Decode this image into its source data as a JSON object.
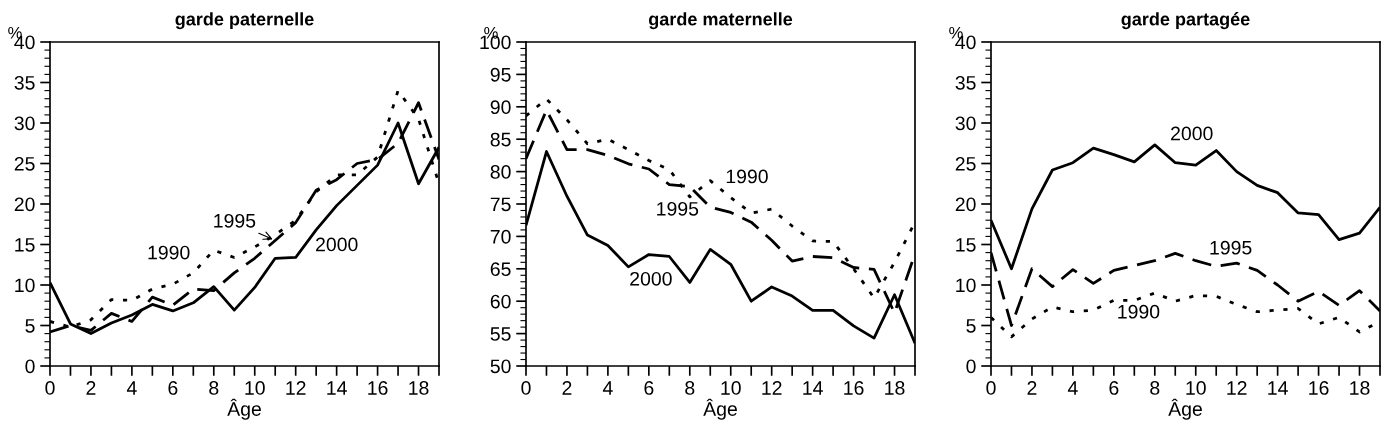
{
  "chart_data": [
    {
      "type": "line",
      "title": "garde paternelle",
      "xlabel": "Âge",
      "ylabel": "%",
      "x": [
        0,
        1,
        2,
        3,
        4,
        5,
        6,
        7,
        8,
        9,
        10,
        11,
        12,
        13,
        14,
        15,
        16,
        17,
        18,
        19
      ],
      "xlim": [
        0,
        19
      ],
      "ylim": [
        0,
        40
      ],
      "xticks": [
        0,
        {
          "value": 1,
          "label": null
        },
        2,
        {
          "value": 3,
          "label": null
        },
        4,
        {
          "value": 5,
          "label": null
        },
        6,
        {
          "value": 7,
          "label": null
        },
        8,
        {
          "value": 9,
          "label": null
        },
        10,
        {
          "value": 11,
          "label": null
        },
        12,
        {
          "value": 13,
          "label": null
        },
        14,
        {
          "value": 15,
          "label": null
        },
        16,
        {
          "value": 17,
          "label": null
        },
        18,
        {
          "value": 19,
          "label": null
        }
      ],
      "yticks": [
        0,
        5,
        10,
        15,
        20,
        25,
        30,
        35,
        40
      ],
      "grid": false,
      "series": [
        {
          "name": "1990",
          "color": "#000000",
          "line_style": "dotted",
          "values": [
            5.5,
            4.8,
            5.7,
            8.2,
            8.1,
            9.5,
            10.1,
            11.5,
            14.3,
            13.4,
            14.7,
            16.2,
            18.0,
            21.5,
            23.6,
            23.6,
            25.8,
            34.0,
            30.5,
            22.5
          ]
        },
        {
          "name": "1995",
          "color": "#000000",
          "line_style": "dashed",
          "values": [
            4.2,
            5.0,
            4.4,
            6.5,
            5.5,
            8.5,
            7.5,
            9.5,
            9.3,
            11.5,
            13.3,
            15.5,
            17.7,
            21.7,
            23.0,
            25.0,
            25.5,
            27.5,
            32.5,
            25.5
          ]
        },
        {
          "name": "2000",
          "color": "#000000",
          "line_style": "solid",
          "values": [
            10.3,
            5.2,
            4.0,
            5.3,
            6.3,
            7.6,
            6.8,
            7.8,
            9.8,
            6.9,
            9.7,
            13.3,
            13.4,
            16.8,
            19.8,
            22.3,
            24.8,
            30.0,
            22.5,
            27.0
          ]
        }
      ]
    },
    {
      "type": "line",
      "title": "garde maternelle",
      "xlabel": "Âge",
      "ylabel": "%",
      "x": [
        0,
        1,
        2,
        3,
        4,
        5,
        6,
        7,
        8,
        9,
        10,
        11,
        12,
        13,
        14,
        15,
        16,
        17,
        18,
        19
      ],
      "xlim": [
        0,
        19
      ],
      "ylim": [
        50,
        100
      ],
      "xticks": [
        0,
        {
          "value": 1,
          "label": null
        },
        2,
        {
          "value": 3,
          "label": null
        },
        4,
        {
          "value": 5,
          "label": null
        },
        6,
        {
          "value": 7,
          "label": null
        },
        8,
        {
          "value": 9,
          "label": null
        },
        10,
        {
          "value": 11,
          "label": null
        },
        12,
        {
          "value": 13,
          "label": null
        },
        14,
        {
          "value": 15,
          "label": null
        },
        16,
        {
          "value": 17,
          "label": null
        },
        18,
        {
          "value": 19,
          "label": null
        }
      ],
      "yticks": [
        50,
        55,
        60,
        65,
        70,
        75,
        80,
        85,
        90,
        95,
        100
      ],
      "grid": false,
      "legend": false,
      "series": [
        {
          "name": "1990",
          "color": "#000000",
          "line_style": "dotted",
          "values": [
            88.6,
            91.2,
            88.0,
            84.3,
            85.0,
            83.4,
            81.7,
            80.3,
            76.1,
            78.6,
            76.0,
            73.6,
            74.2,
            71.6,
            69.3,
            69.2,
            65.0,
            60.5,
            66.0,
            72.2
          ]
        },
        {
          "name": "1995",
          "color": "#000000",
          "line_style": "dashed",
          "values": [
            82.0,
            89.5,
            83.4,
            83.4,
            82.5,
            81.2,
            80.4,
            78.0,
            77.7,
            74.5,
            73.7,
            72.2,
            69.4,
            66.2,
            66.9,
            66.7,
            65.2,
            64.9,
            58.2,
            67.3
          ]
        },
        {
          "name": "2000",
          "color": "#000000",
          "line_style": "solid",
          "values": [
            71.7,
            83.1,
            76.2,
            70.2,
            68.6,
            65.3,
            67.2,
            66.9,
            62.9,
            68.0,
            65.7,
            60.0,
            62.2,
            60.8,
            58.6,
            58.6,
            56.2,
            54.3,
            61.0,
            53.5
          ]
        }
      ]
    },
    {
      "type": "line",
      "title": "garde partagée",
      "xlabel": "Âge",
      "ylabel": "%",
      "x": [
        0,
        1,
        2,
        3,
        4,
        5,
        6,
        7,
        8,
        9,
        10,
        11,
        12,
        13,
        14,
        15,
        16,
        17,
        18,
        19
      ],
      "xlim": [
        0,
        19
      ],
      "ylim": [
        0,
        40
      ],
      "xticks": [
        0,
        {
          "value": 1,
          "label": null
        },
        2,
        {
          "value": 3,
          "label": null
        },
        4,
        {
          "value": 5,
          "label": null
        },
        6,
        {
          "value": 7,
          "label": null
        },
        8,
        {
          "value": 9,
          "label": null
        },
        10,
        {
          "value": 11,
          "label": null
        },
        12,
        {
          "value": 13,
          "label": null
        },
        14,
        {
          "value": 15,
          "label": null
        },
        16,
        {
          "value": 17,
          "label": null
        },
        18,
        {
          "value": 19,
          "label": null
        }
      ],
      "yticks": [
        0,
        5,
        10,
        15,
        20,
        25,
        30,
        35,
        40
      ],
      "grid": false,
      "legend": false,
      "series": [
        {
          "name": "1990",
          "color": "#000000",
          "line_style": "dotted",
          "values": [
            6.0,
            3.6,
            5.8,
            7.3,
            6.7,
            6.9,
            8.1,
            8.1,
            9.0,
            8.0,
            8.7,
            8.6,
            7.6,
            6.7,
            6.9,
            7.1,
            5.2,
            6.0,
            4.2,
            5.5
          ]
        },
        {
          "name": "1995",
          "color": "#000000",
          "line_style": "dashed",
          "values": [
            14.0,
            5.0,
            12.0,
            9.8,
            11.9,
            10.2,
            11.8,
            12.4,
            13.0,
            13.9,
            13.0,
            12.3,
            12.7,
            11.8,
            10.0,
            8.0,
            9.2,
            7.5,
            9.3,
            6.8
          ]
        },
        {
          "name": "2000",
          "color": "#000000",
          "line_style": "solid",
          "values": [
            18.0,
            12.0,
            19.4,
            24.2,
            25.1,
            26.9,
            26.1,
            25.2,
            27.3,
            25.1,
            24.8,
            26.6,
            24.0,
            22.3,
            21.4,
            18.9,
            18.7,
            15.6,
            16.4,
            19.6
          ]
        }
      ]
    }
  ]
}
